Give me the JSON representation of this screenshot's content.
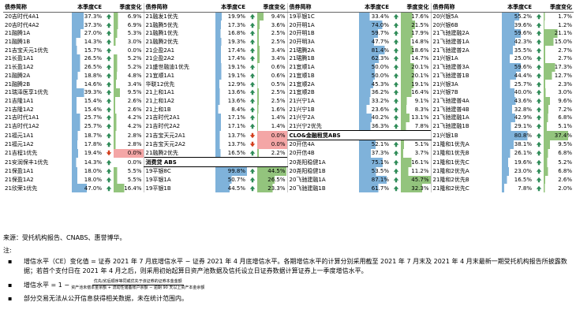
{
  "headers": [
    "债券简称",
    "本季度CE",
    "季度变化",
    "债券简称",
    "本季度CE",
    "季度变化",
    "债券简称",
    "本季度CE",
    "季度变化",
    "债券简称",
    "本季度CE",
    "季度变化"
  ],
  "colors": {
    "bar_blue": "#7fb2da",
    "bar_green": "#93c47d",
    "bar_red": "#f4a6a6",
    "arrow_green": "#2e8b57",
    "arrow_red": "#d23c1a"
  },
  "rows": [
    [
      [
        "20吉时代4A1",
        "37.3%",
        "up",
        "6.9%"
      ],
      [
        "21融发1优先",
        "19.9%",
        "up",
        "9.4%"
      ],
      [
        "19平银1C",
        "33.4%",
        "up",
        "17.6%"
      ],
      [
        "20兴银5A",
        "55.2%",
        "up",
        "1.7%"
      ]
    ],
    [
      [
        "20吉时代4A2",
        "37.3%",
        "up",
        "6.9%"
      ],
      [
        "21融腾5优先",
        "17.3%",
        "up",
        "3.6%"
      ],
      [
        "20开明1A",
        "74.0%",
        "up",
        "21.5%"
      ],
      [
        "20兴银6B",
        "39.6%",
        "up",
        "1.2%"
      ]
    ],
    [
      [
        "21融腾1A",
        "27.0%",
        "up",
        "5.3%"
      ],
      [
        "21融腾1优先",
        "16.8%",
        "up",
        "2.5%"
      ],
      [
        "20开明1B",
        "59.7%",
        "up",
        "17.9%"
      ],
      [
        "21飞驰建融2A",
        "59.6%",
        "up",
        "21.1%"
      ]
    ],
    [
      [
        "21融腾1B",
        "14.3%",
        "up",
        "3.0%"
      ],
      [
        "21融腾2优先",
        "19.3%",
        "up",
        "2.5%"
      ],
      [
        "20开明3A",
        "47.7%",
        "up",
        "14.8%"
      ],
      [
        "21飞驰建普1A",
        "42.3%",
        "up",
        "15.0%"
      ]
    ],
    [
      [
        "21吉宝天元1优先",
        "15.7%",
        "up",
        "0.0%"
      ],
      [
        "21企盈2A1",
        "17.4%",
        "up",
        "3.4%"
      ],
      [
        "21珺腾2A",
        "81.4%",
        "up",
        "18.6%"
      ],
      [
        "21飞驰建普2A",
        "35.5%",
        "up",
        "2.7%"
      ]
    ],
    [
      [
        "21长盈1A1",
        "26.5%",
        "up",
        "5.2%"
      ],
      [
        "21企盈2A2",
        "17.4%",
        "up",
        "3.4%"
      ],
      [
        "21珺腾1B",
        "62.3%",
        "up",
        "14.7%"
      ],
      [
        "21兴银1A",
        "25.0%",
        "up",
        "2.7%"
      ]
    ],
    [
      [
        "21长盈1A2",
        "26.5%",
        "up",
        "5.2%"
      ],
      [
        "21盛世融迪1优先",
        "19.1%",
        "up",
        "0.6%"
      ],
      [
        "21宜顺1A",
        "50.0%",
        "up",
        "20.1%"
      ],
      [
        "21飞驰建普3A",
        "59.6%",
        "up",
        "17.3%"
      ]
    ],
    [
      [
        "21融腾2A",
        "18.8%",
        "up",
        "4.8%"
      ],
      [
        "21宜顺1A1",
        "19.1%",
        "up",
        "0.6%"
      ],
      [
        "21宜顺1B",
        "50.0%",
        "up",
        "20.1%"
      ],
      [
        "21飞驰建普1B",
        "44.4%",
        "up",
        "12.7%"
      ]
    ],
    [
      [
        "21融腾2B",
        "14.6%",
        "up",
        "3.4%"
      ],
      [
        "华联12优先",
        "12.9%",
        "up",
        "0.5%"
      ],
      [
        "21宜顺2A",
        "45.3%",
        "up",
        "19.1%"
      ],
      [
        "21兴银3A",
        "25.7%",
        "up",
        "2.3%"
      ]
    ],
    [
      [
        "21瑞泽医享1优先",
        "39.3%",
        "up",
        "9.5%"
      ],
      [
        "21上和1A1",
        "13.6%",
        "up",
        "2.5%"
      ],
      [
        "21宜顺2B",
        "36.2%",
        "up",
        "16.4%"
      ],
      [
        "21兴银7B",
        "40.0%",
        "up",
        "3.0%"
      ]
    ],
    [
      [
        "21吉隆1A1",
        "15.4%",
        "up",
        "2.6%"
      ],
      [
        "21上和1A2",
        "13.6%",
        "up",
        "2.5%"
      ],
      [
        "21兴宁1A",
        "33.2%",
        "up",
        "9.1%"
      ],
      [
        "21飞驰建普4A",
        "43.6%",
        "up",
        "9.6%"
      ]
    ],
    [
      [
        "21吉隆1A2",
        "15.4%",
        "up",
        "2.6%"
      ],
      [
        "21上和1B",
        "8.4%",
        "up",
        "1.6%"
      ],
      [
        "21兴宁1B",
        "23.6%",
        "up",
        "8.3%"
      ],
      [
        "21飞驰建普4B",
        "32.8%",
        "up",
        "7.2%"
      ]
    ],
    [
      [
        "21吉时代1A1",
        "25.7%",
        "up",
        "4.2%"
      ],
      [
        "21吉时代2A1",
        "17.1%",
        "up",
        "1.4%"
      ],
      [
        "21兴宁2A",
        "40.2%",
        "up",
        "13.1%"
      ],
      [
        "21飞驰建融1A",
        "42.9%",
        "up",
        "6.8%"
      ]
    ],
    [
      [
        "21吉时代1A2",
        "25.7%",
        "up",
        "4.2%"
      ],
      [
        "21吉时代2A2",
        "17.1%",
        "up",
        "1.4%"
      ],
      [
        "21兴宁2优先",
        "36.3%",
        "up",
        "7.8%"
      ],
      [
        "21飞驰建融1B",
        "29.1%",
        "up",
        "5.1%"
      ]
    ],
    [
      [
        "21福元1A1",
        "18.7%",
        "up",
        "2.8%"
      ],
      [
        "21吉宝天元2A1",
        "13.7%",
        "down",
        "0.0%"
      ],
      null,
      [
        "21兴银1B",
        "80.8%",
        "up",
        "37.4%"
      ]
    ],
    [
      [
        "21福元1A2",
        "17.8%",
        "up",
        "2.8%"
      ],
      [
        "21吉宝天元2A2",
        "13.7%",
        "down",
        "0.0%"
      ],
      [
        "20开信4A",
        "52.1%",
        "up",
        "5.1%"
      ],
      [
        "21隆和1优先A",
        "38.1%",
        "up",
        "9.5%"
      ]
    ],
    [
      [
        "21吉程1优先",
        "19.4%",
        "down",
        "0.0%"
      ],
      [
        "21融腾2优先",
        "16.5%",
        "up",
        "2.2%"
      ],
      [
        "20开信4B",
        "37.3%",
        "up",
        "3.7%"
      ],
      [
        "21隆和1优先B",
        "26.1%",
        "up",
        "6.8%"
      ]
    ],
    [
      [
        "21安润保丰1优先",
        "14.3%",
        "up",
        "0.0%"
      ],
      null,
      [
        "20尧阳稳健1A",
        "75.1%",
        "up",
        "16.1%"
      ],
      [
        "21隆和1优先C",
        "19.6%",
        "up",
        "5.2%"
      ]
    ],
    [
      [
        "21保盈1A1",
        "18.0%",
        "up",
        "5.5%"
      ],
      [
        "19平银8C",
        "99.8%",
        "up",
        "44.5%"
      ],
      [
        "20尧阳稳健1B",
        "53.5%",
        "up",
        "11.2%"
      ],
      [
        "21隆和2优先A",
        "23.0%",
        "up",
        "6.8%"
      ]
    ],
    [
      [
        "21保盈1A2",
        "18.0%",
        "up",
        "5.5%"
      ],
      [
        "19平银1A",
        "50.7%",
        "up",
        "26.5%"
      ],
      [
        "20飞驰建融1A",
        "87.1%",
        "up",
        "45.7%"
      ],
      [
        "21隆和2优先B",
        "16.5%",
        "up",
        "2.6%"
      ]
    ],
    [
      [
        "21欣荣1优先",
        "47.0%",
        "up",
        "16.4%"
      ],
      [
        "19平银1B",
        "44.5%",
        "up",
        "23.3%"
      ],
      [
        "20飞驰建融1B",
        "61.7%",
        "up",
        "32.3%"
      ],
      [
        "21隆和2优先C",
        "7.8%",
        "up",
        "2.0%"
      ]
    ]
  ],
  "sections": {
    "consumer_finance_abs": "消费贷 ABS",
    "clo_leasing_abs": "CLO&金融租赁ABS"
  },
  "notes": {
    "source": "来源：受托机构报告、CNABS、惠誉博华。",
    "title": "注:",
    "bullet1": "增信水平（CE）变化值 = 证券 2021 年 7 月底增信水平 − 证券 2021 年 4 月底增信水平。各期增信水平的计算分别采用截至 2021 年 7 月末及 2021 年 4 月末最新一期受托机构报告所披露数据；若首个支付日在 2021 年 4 月之后，则采用初始起算日资产池数据及信托设立日证券数据计算证券上一季度增信水平。",
    "formula_label": "增信水平 = 1 −",
    "formula_num": "优先/劣后顺序等同或优先于该证券的证券本金金额",
    "formula_den": "资产池未偿本金余额 + 流动性储备账户余额 − 逾期 90 天以上资产本金余额",
    "bullet3": "部分交易无法从公开信息获得相关数据，未在统计范围内。",
    "bullet_mark": "▪"
  }
}
